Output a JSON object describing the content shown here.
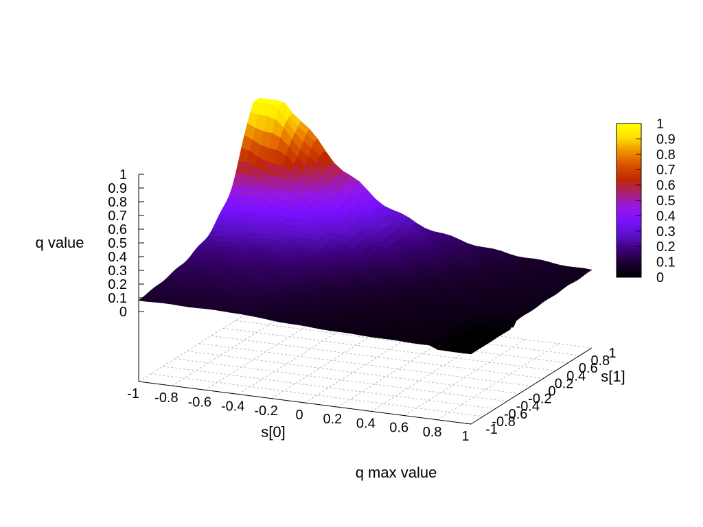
{
  "chart_data": {
    "type": "surface3d",
    "title": "q max value",
    "xlabel": "s[0]",
    "ylabel": "s[1]",
    "zlabel": "q value",
    "xlim": [
      -1,
      1
    ],
    "ylim": [
      -1,
      1
    ],
    "zlim": [
      0,
      1
    ],
    "xticks": [
      "-1",
      "-0.8",
      "-0.6",
      "-0.4",
      "-0.2",
      "0",
      "0.2",
      "0.4",
      "0.6",
      "0.8",
      "1"
    ],
    "yticks": [
      "-1",
      "-0.8",
      "-0.6",
      "-0.4",
      "-0.2",
      "0",
      "0.2",
      "0.4",
      "0.6",
      "0.8",
      "1"
    ],
    "zticks": [
      "0",
      "0.1",
      "0.2",
      "0.3",
      "0.4",
      "0.5",
      "0.6",
      "0.7",
      "0.8",
      "0.9",
      "1"
    ],
    "colorbar_ticks": [
      "0",
      "0.1",
      "0.2",
      "0.3",
      "0.4",
      "0.5",
      "0.6",
      "0.7",
      "0.8",
      "0.9",
      "1"
    ],
    "colormap": [
      "#000000",
      "#1c0030",
      "#3c0078",
      "#5c10c8",
      "#7a10ff",
      "#9418e8",
      "#aa2078",
      "#c02800",
      "#d85000",
      "#f09000",
      "#ffe000",
      "#ffff00"
    ],
    "grid": true,
    "colorbar_position": "right",
    "peak": {
      "s0": -1,
      "s1": 1,
      "q": 1.0
    },
    "z_at_s0_minus1": [
      {
        "s1": -1,
        "q": 0.05
      },
      {
        "s1": -0.5,
        "q": 0.1
      },
      {
        "s1": 0,
        "q": 0.2
      },
      {
        "s1": 0.5,
        "q": 0.4
      },
      {
        "s1": 0.8,
        "q": 0.75
      },
      {
        "s1": 1,
        "q": 1.0
      }
    ],
    "z_at_s1_plus1": [
      {
        "s0": -1,
        "q": 1.0
      },
      {
        "s0": -0.8,
        "q": 0.6
      },
      {
        "s0": -0.6,
        "q": 0.35
      },
      {
        "s0": -0.2,
        "q": 0.15
      },
      {
        "s0": 0.2,
        "q": 0.05
      },
      {
        "s0": 1,
        "q": 0.0
      }
    ]
  }
}
